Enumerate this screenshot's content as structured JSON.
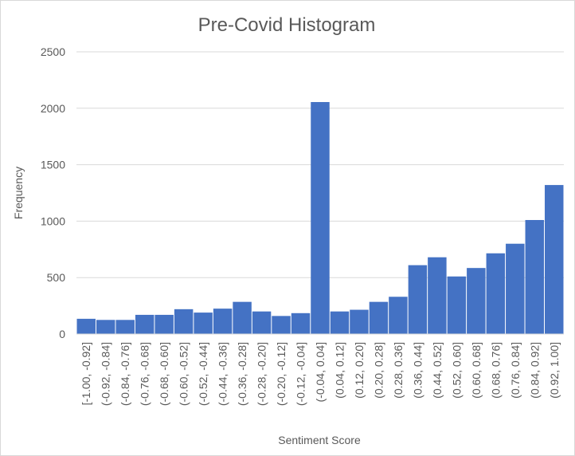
{
  "chart_data": {
    "type": "bar",
    "title": "Pre-Covid Histogram",
    "xlabel": "Sentiment Score",
    "ylabel": "Frequency",
    "ylim": [
      0,
      2500
    ],
    "yticks": [
      0,
      500,
      1000,
      1500,
      2000,
      2500
    ],
    "grid": true,
    "legend": "none",
    "bar_color": "#4472C4",
    "categories": [
      "[-1.00, -0.92]",
      "(-0.92, -0.84]",
      "(-0.84, -0.76]",
      "(-0.76, -0.68]",
      "(-0.68, -0.60]",
      "(-0.60, -0.52]",
      "(-0.52, -0.44]",
      "(-0.44, -0.36]",
      "(-0.36, -0.28]",
      "(-0.28, -0.20]",
      "(-0.20, -0.12]",
      "(-0.12, -0.04]",
      "(-0.04, 0.04]",
      "(0.04, 0.12]",
      "(0.12, 0.20]",
      "(0.20, 0.28]",
      "(0.28, 0.36]",
      "(0.36, 0.44]",
      "(0.44, 0.52]",
      "(0.52, 0.60]",
      "(0.60, 0.68]",
      "(0.68, 0.76]",
      "(0.76, 0.84]",
      "(0.84, 0.92]",
      "(0.92, 1.00]"
    ],
    "values": [
      135,
      125,
      125,
      170,
      170,
      220,
      190,
      225,
      285,
      200,
      160,
      185,
      2055,
      200,
      215,
      285,
      330,
      610,
      680,
      510,
      585,
      715,
      800,
      1010,
      1320
    ]
  }
}
